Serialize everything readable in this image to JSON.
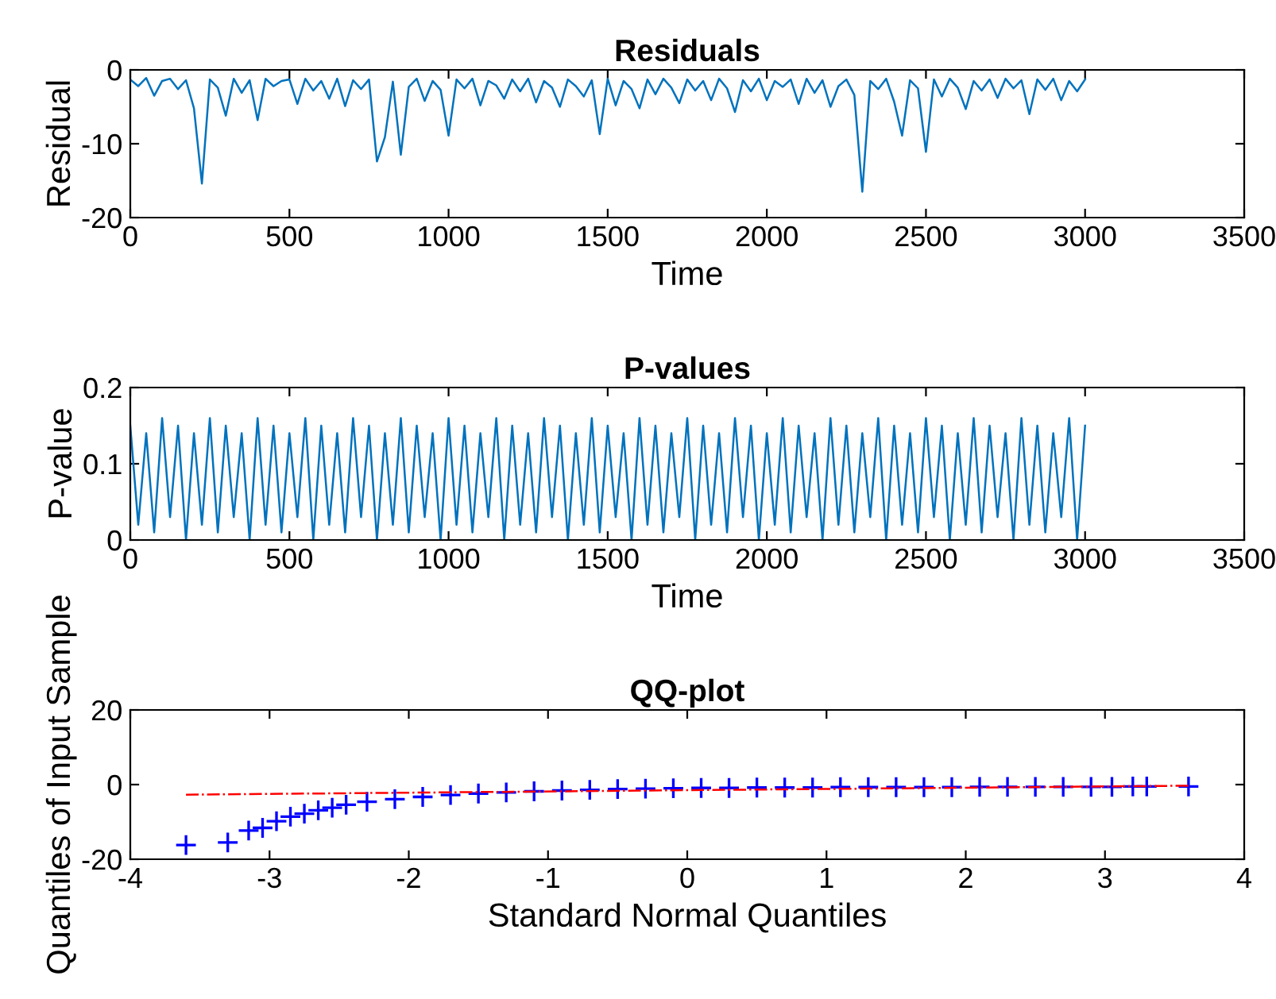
{
  "chart_data": [
    {
      "type": "line",
      "title": "Residuals",
      "xlabel": "Time",
      "ylabel": "Residual",
      "xlim": [
        0,
        3500
      ],
      "xticks": [
        0,
        500,
        1000,
        1500,
        2000,
        2500,
        3000,
        3500
      ],
      "ylim": [
        -20,
        0
      ],
      "yticks": [
        -20,
        -10,
        0
      ],
      "grid": false,
      "legend": false,
      "series": [
        {
          "color": "#0072bd",
          "x": [
            0,
            25,
            50,
            75,
            100,
            125,
            150,
            175,
            200,
            225,
            250,
            275,
            300,
            325,
            350,
            375,
            400,
            425,
            450,
            475,
            500,
            525,
            550,
            575,
            600,
            625,
            650,
            675,
            700,
            725,
            750,
            775,
            800,
            825,
            850,
            875,
            900,
            925,
            950,
            975,
            1000,
            1025,
            1050,
            1075,
            1100,
            1125,
            1150,
            1175,
            1200,
            1225,
            1250,
            1275,
            1300,
            1325,
            1350,
            1375,
            1400,
            1425,
            1450,
            1475,
            1500,
            1525,
            1550,
            1575,
            1600,
            1625,
            1650,
            1675,
            1700,
            1725,
            1750,
            1775,
            1800,
            1825,
            1850,
            1875,
            1900,
            1925,
            1950,
            1975,
            2000,
            2025,
            2050,
            2075,
            2100,
            2125,
            2150,
            2175,
            2200,
            2225,
            2250,
            2275,
            2300,
            2325,
            2350,
            2375,
            2400,
            2425,
            2450,
            2475,
            2500,
            2525,
            2550,
            2575,
            2600,
            2625,
            2650,
            2675,
            2700,
            2725,
            2750,
            2775,
            2800,
            2825,
            2850,
            2875,
            2900,
            2925,
            2950,
            2975,
            3000
          ],
          "values": [
            -1.3,
            -2.2,
            -1.1,
            -3.5,
            -1.5,
            -1.2,
            -2.6,
            -1.4,
            -5.2,
            -15.4,
            -1.3,
            -2.4,
            -6.2,
            -1.2,
            -3.1,
            -1.4,
            -6.8,
            -1.2,
            -2.2,
            -1.5,
            -1.3,
            -4.6,
            -1.2,
            -2.8,
            -1.5,
            -3.9,
            -1.2,
            -4.9,
            -1.4,
            -2.6,
            -1.3,
            -12.4,
            -9.1,
            -1.6,
            -11.5,
            -2.3,
            -1.2,
            -4.2,
            -1.5,
            -2.7,
            -8.9,
            -1.3,
            -2.5,
            -1.2,
            -4.8,
            -1.5,
            -2.1,
            -3.9,
            -1.3,
            -2.9,
            -1.2,
            -4.4,
            -1.5,
            -2.4,
            -5.0,
            -1.3,
            -2.2,
            -3.6,
            -1.4,
            -8.7,
            -1.2,
            -4.8,
            -1.5,
            -2.6,
            -5.2,
            -1.3,
            -3.3,
            -1.2,
            -2.4,
            -4.5,
            -1.3,
            -2.8,
            -1.5,
            -4.1,
            -1.2,
            -2.5,
            -5.7,
            -1.4,
            -2.9,
            -1.2,
            -4.1,
            -1.5,
            -2.3,
            -1.3,
            -4.6,
            -1.2,
            -3.1,
            -1.4,
            -5.0,
            -2.2,
            -1.3,
            -3.4,
            -16.5,
            -1.5,
            -2.6,
            -1.2,
            -4.3,
            -8.9,
            -1.4,
            -2.5,
            -11.1,
            -1.3,
            -3.6,
            -1.2,
            -2.4,
            -5.3,
            -1.5,
            -2.8,
            -1.3,
            -3.8,
            -1.2,
            -2.5,
            -1.4,
            -6.0,
            -1.3,
            -2.7,
            -1.2,
            -4.1,
            -1.5,
            -2.9,
            -1.3
          ]
        }
      ]
    },
    {
      "type": "line",
      "title": "P-values",
      "xlabel": "Time",
      "ylabel": "P-value",
      "xlim": [
        0,
        3500
      ],
      "xticks": [
        0,
        500,
        1000,
        1500,
        2000,
        2500,
        3000,
        3500
      ],
      "ylim": [
        0,
        0.2
      ],
      "yticks": [
        0,
        0.1,
        0.2
      ],
      "grid": false,
      "legend": false,
      "series": [
        {
          "color": "#0072bd",
          "x": [
            0,
            25,
            50,
            75,
            100,
            125,
            150,
            175,
            200,
            225,
            250,
            275,
            300,
            325,
            350,
            375,
            400,
            425,
            450,
            475,
            500,
            525,
            550,
            575,
            600,
            625,
            650,
            675,
            700,
            725,
            750,
            775,
            800,
            825,
            850,
            875,
            900,
            925,
            950,
            975,
            1000,
            1025,
            1050,
            1075,
            1100,
            1125,
            1150,
            1175,
            1200,
            1225,
            1250,
            1275,
            1300,
            1325,
            1350,
            1375,
            1400,
            1425,
            1450,
            1475,
            1500,
            1525,
            1550,
            1575,
            1600,
            1625,
            1650,
            1675,
            1700,
            1725,
            1750,
            1775,
            1800,
            1825,
            1850,
            1875,
            1900,
            1925,
            1950,
            1975,
            2000,
            2025,
            2050,
            2075,
            2100,
            2125,
            2150,
            2175,
            2200,
            2225,
            2250,
            2275,
            2300,
            2325,
            2350,
            2375,
            2400,
            2425,
            2450,
            2475,
            2500,
            2525,
            2550,
            2575,
            2600,
            2625,
            2650,
            2675,
            2700,
            2725,
            2750,
            2775,
            2800,
            2825,
            2850,
            2875,
            2900,
            2925,
            2950,
            2975,
            3000
          ],
          "values": [
            0.15,
            0.02,
            0.14,
            0.01,
            0.16,
            0.03,
            0.15,
            0.0,
            0.14,
            0.02,
            0.16,
            0.01,
            0.15,
            0.03,
            0.14,
            0.0,
            0.16,
            0.02,
            0.15,
            0.01,
            0.14,
            0.03,
            0.16,
            0.0,
            0.15,
            0.02,
            0.14,
            0.01,
            0.16,
            0.03,
            0.15,
            0.0,
            0.14,
            0.02,
            0.16,
            0.01,
            0.15,
            0.03,
            0.14,
            0.0,
            0.16,
            0.02,
            0.15,
            0.01,
            0.14,
            0.03,
            0.16,
            0.0,
            0.15,
            0.02,
            0.14,
            0.01,
            0.16,
            0.03,
            0.15,
            0.0,
            0.14,
            0.02,
            0.16,
            0.01,
            0.15,
            0.03,
            0.14,
            0.0,
            0.16,
            0.02,
            0.15,
            0.01,
            0.14,
            0.03,
            0.16,
            0.0,
            0.15,
            0.02,
            0.14,
            0.01,
            0.16,
            0.03,
            0.15,
            0.0,
            0.14,
            0.02,
            0.16,
            0.01,
            0.15,
            0.03,
            0.14,
            0.0,
            0.16,
            0.02,
            0.15,
            0.01,
            0.14,
            0.03,
            0.16,
            0.0,
            0.15,
            0.02,
            0.14,
            0.01,
            0.16,
            0.03,
            0.15,
            0.0,
            0.14,
            0.02,
            0.16,
            0.01,
            0.15,
            0.03,
            0.14,
            0.0,
            0.16,
            0.02,
            0.15,
            0.01,
            0.14,
            0.03,
            0.16,
            0.0,
            0.15
          ]
        }
      ]
    },
    {
      "type": "scatter",
      "title": "QQ-plot",
      "xlabel": "Standard Normal Quantiles",
      "ylabel": "Quantiles of Input Sample",
      "xlim": [
        -4,
        4
      ],
      "xticks": [
        -4,
        -3,
        -2,
        -1,
        0,
        1,
        2,
        3,
        4
      ],
      "ylim": [
        -20,
        20
      ],
      "yticks": [
        -20,
        0,
        20
      ],
      "grid": false,
      "legend": false,
      "series": [
        {
          "type": "line",
          "color": "#ff0000",
          "line_style": "dashed",
          "marker": "none",
          "x": [
            -3.6,
            3.6
          ],
          "values": [
            -2.7,
            -0.3
          ]
        },
        {
          "type": "scatter",
          "color": "#0000ff",
          "marker": "cross",
          "x": [
            -3.6,
            -3.3,
            -3.15,
            -3.05,
            -2.95,
            -2.85,
            -2.75,
            -2.65,
            -2.55,
            -2.45,
            -2.3,
            -2.1,
            -1.9,
            -1.7,
            -1.5,
            -1.3,
            -1.1,
            -0.9,
            -0.7,
            -0.5,
            -0.3,
            -0.1,
            0.1,
            0.3,
            0.5,
            0.7,
            0.9,
            1.1,
            1.3,
            1.5,
            1.7,
            1.9,
            2.1,
            2.3,
            2.5,
            2.7,
            2.9,
            3.05,
            3.2,
            3.3,
            3.6
          ],
          "values": [
            -16.2,
            -15.5,
            -12.3,
            -11.6,
            -9.8,
            -8.6,
            -7.8,
            -6.9,
            -6.2,
            -5.4,
            -4.6,
            -3.9,
            -3.3,
            -2.8,
            -2.4,
            -2.1,
            -1.8,
            -1.6,
            -1.4,
            -1.2,
            -1.1,
            -1.0,
            -0.9,
            -0.9,
            -0.8,
            -0.8,
            -0.8,
            -0.7,
            -0.7,
            -0.7,
            -0.7,
            -0.7,
            -0.6,
            -0.6,
            -0.6,
            -0.6,
            -0.6,
            -0.6,
            -0.5,
            -0.5,
            -0.5
          ]
        }
      ]
    }
  ]
}
